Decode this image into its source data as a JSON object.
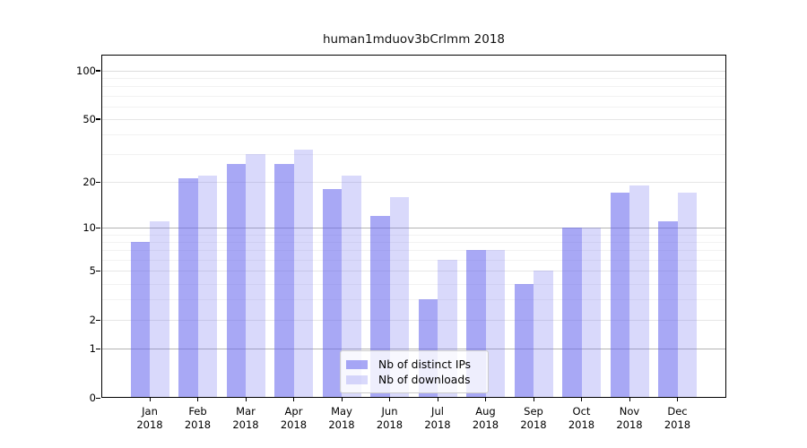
{
  "title": "human1mduov3bCrlmm 2018",
  "chart_data": {
    "type": "bar",
    "title": "human1mduov3bCrlmm 2018",
    "xlabel": "",
    "ylabel": "",
    "categories": [
      "Jan",
      "Feb",
      "Mar",
      "Apr",
      "May",
      "Jun",
      "Jul",
      "Aug",
      "Sep",
      "Oct",
      "Nov",
      "Dec"
    ],
    "year_label": "2018",
    "series": [
      {
        "name": "Nb of distinct IPs",
        "color": "#6666ee",
        "alpha": 0.57,
        "values": [
          8,
          21,
          26,
          26,
          18,
          12,
          3,
          7,
          4,
          10,
          17,
          11
        ]
      },
      {
        "name": "Nb of downloads",
        "color": "#6666ee",
        "alpha": 0.25,
        "values": [
          11,
          22,
          30,
          32,
          22,
          16,
          6,
          7,
          5,
          10,
          19,
          17
        ]
      }
    ],
    "yscale": "log1p",
    "ylim": [
      0,
      112
    ],
    "yticks": [
      0,
      1,
      2,
      5,
      10,
      20,
      50,
      100
    ],
    "minor_gridlines": [
      3,
      4,
      6,
      7,
      8,
      9,
      30,
      40,
      60,
      70,
      80,
      90
    ],
    "emphasized_gridlines": [
      1,
      10
    ],
    "grid": true,
    "legend_position": "lower center"
  },
  "colors": {
    "grid_minor": "#f2f2f2",
    "grid_major": "#e6e6e6",
    "grid_top": "#dcdcdc",
    "grid_emphasized": "#b3b3b3",
    "axis": "#000000"
  }
}
